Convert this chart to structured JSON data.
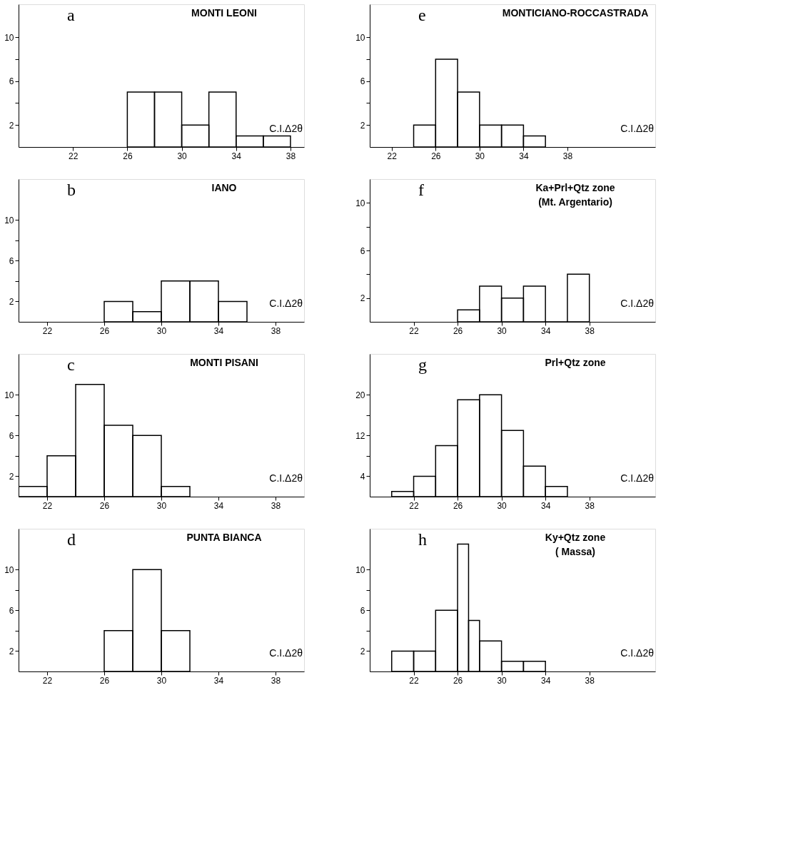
{
  "chart_data": [
    {
      "type": "histogram",
      "title": "a",
      "subtitle": "MONTI LEONI",
      "xlabel": "C.I.Δ2θ",
      "color": "#000000",
      "bins": [
        26,
        28,
        30,
        32,
        34,
        36,
        38
      ],
      "values": [
        5,
        5,
        2,
        5,
        1,
        1
      ],
      "xlim": [
        18,
        39
      ],
      "ylim": [
        0,
        13
      ],
      "xticks": [
        22,
        26,
        30,
        34,
        38
      ],
      "yticks": [
        2,
        {
          "value": 4,
          "label": null
        },
        6,
        {
          "value": 8,
          "label": null
        },
        10
      ]
    },
    {
      "type": "histogram",
      "title": "e",
      "subtitle": "MONTICIANO-ROCCASTRADA",
      "xlabel": "C.I.Δ2θ",
      "color": "#000000",
      "bins": [
        24,
        26,
        28,
        30,
        32,
        34,
        36
      ],
      "values": [
        2,
        8,
        5,
        2,
        2,
        1
      ],
      "xlim": [
        20,
        46
      ],
      "ylim": [
        0,
        13
      ],
      "xticks": [
        22,
        26,
        30,
        34,
        38
      ],
      "yticks": [
        2,
        {
          "value": 4,
          "label": null
        },
        6,
        {
          "value": 8,
          "label": null
        },
        10
      ]
    },
    {
      "type": "histogram",
      "title": "b",
      "subtitle": "IANO",
      "xlabel": "C.I.Δ2θ",
      "color": "#000000",
      "bins": [
        26,
        28,
        30,
        32,
        34,
        36
      ],
      "values": [
        2,
        1,
        4,
        4,
        2
      ],
      "xlim": [
        20,
        40
      ],
      "ylim": [
        0,
        14
      ],
      "xticks": [
        22,
        26,
        30,
        34,
        38
      ],
      "yticks": [
        2,
        {
          "value": 4,
          "label": null
        },
        6,
        {
          "value": 8,
          "label": null
        },
        10
      ]
    },
    {
      "type": "histogram",
      "title": "f",
      "subtitle": "Ka+Prl+Qtz  zone\n(Mt. Argentario)",
      "xlabel": "C.I.Δ2θ",
      "color": "#000000",
      "bins": [
        26,
        28,
        30,
        32,
        34,
        36,
        38
      ],
      "values": [
        1,
        3,
        2,
        3,
        0,
        4
      ],
      "xlim": [
        18,
        44
      ],
      "ylim": [
        0,
        12
      ],
      "xticks": [
        22,
        26,
        30,
        34,
        38
      ],
      "yticks": [
        2,
        {
          "value": 4,
          "label": null
        },
        6,
        {
          "value": 8,
          "label": null
        },
        10
      ]
    },
    {
      "type": "histogram",
      "title": "c",
      "subtitle": "MONTI PISANI",
      "xlabel": "C.I.Δ2θ",
      "color": "#000000",
      "bins": [
        20,
        22,
        24,
        26,
        28,
        30,
        32
      ],
      "values": [
        1,
        4,
        11,
        7,
        6,
        1
      ],
      "xlim": [
        20,
        40
      ],
      "ylim": [
        0,
        14
      ],
      "xticks": [
        22,
        26,
        30,
        34,
        38
      ],
      "yticks": [
        2,
        {
          "value": 4,
          "label": null
        },
        6,
        {
          "value": 8,
          "label": null
        },
        10
      ]
    },
    {
      "type": "histogram",
      "title": "g",
      "subtitle": "Prl+Qtz  zone",
      "xlabel": "C.I.Δ2θ",
      "color": "#000000",
      "bins": [
        20,
        22,
        24,
        26,
        28,
        30,
        32,
        34,
        36
      ],
      "values": [
        1,
        4,
        10,
        19,
        20,
        13,
        6,
        2
      ],
      "xlim": [
        18,
        44
      ],
      "ylim": [
        0,
        28
      ],
      "xticks": [
        22,
        26,
        30,
        34,
        38
      ],
      "yticks": [
        4,
        {
          "value": 8,
          "label": null
        },
        12,
        {
          "value": 16,
          "label": null
        },
        20
      ]
    },
    {
      "type": "histogram",
      "title": "d",
      "subtitle": "PUNTA BIANCA",
      "xlabel": "C.I.Δ2θ",
      "color": "#000000",
      "bins": [
        26,
        28,
        30,
        32
      ],
      "values": [
        4,
        10,
        4
      ],
      "xlim": [
        20,
        40
      ],
      "ylim": [
        0,
        14
      ],
      "xticks": [
        22,
        26,
        30,
        34,
        38
      ],
      "yticks": [
        2,
        {
          "value": 4,
          "label": null
        },
        6,
        {
          "value": 8,
          "label": null
        },
        10
      ]
    },
    {
      "type": "histogram",
      "title": "h",
      "subtitle": "Ky+Qtz  zone\n( Massa)",
      "xlabel": "C.I.Δ2θ",
      "color": "#000000",
      "bins": [
        20,
        22,
        24,
        26,
        27,
        28,
        30,
        32,
        34
      ],
      "values": [
        2,
        2,
        6,
        12.5,
        5,
        3,
        1,
        1
      ],
      "xlim": [
        18,
        44
      ],
      "ylim": [
        0,
        14
      ],
      "xticks": [
        22,
        26,
        30,
        34,
        38
      ],
      "yticks": [
        2,
        {
          "value": 4,
          "label": null
        },
        6,
        {
          "value": 8,
          "label": null
        },
        10
      ]
    }
  ]
}
